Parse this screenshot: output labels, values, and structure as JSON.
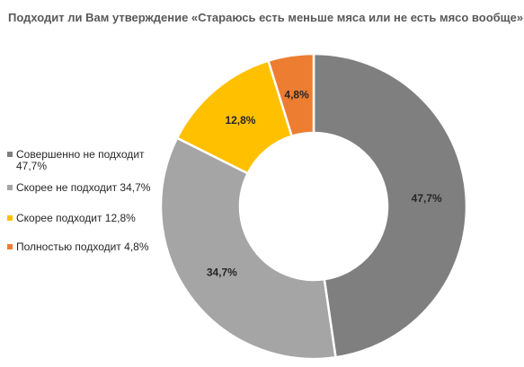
{
  "chart_data": {
    "type": "pie",
    "title": "Подходит ли Вам утверждение «Стараюсь есть меньше мяса или не есть мясо вообще»?",
    "categories": [
      "Совершенно не подходит",
      "Скорее не подходит",
      "Скорее подходит",
      "Полностью подходит"
    ],
    "values": [
      47.7,
      34.7,
      12.8,
      4.8
    ],
    "data_labels": [
      "47,7%",
      "34,7%",
      "12,8%",
      "4,8%"
    ],
    "legend_entries": [
      "Совершенно не подходит 47,7%",
      "Скорее не подходит 34,7%",
      "Скорее подходит 12,8%",
      "Полностью подходит 4,8%"
    ],
    "colors": [
      "#7f7f7f",
      "#a5a5a5",
      "#ffc000",
      "#ed7d31"
    ],
    "donut": true,
    "legend_position": "left"
  }
}
